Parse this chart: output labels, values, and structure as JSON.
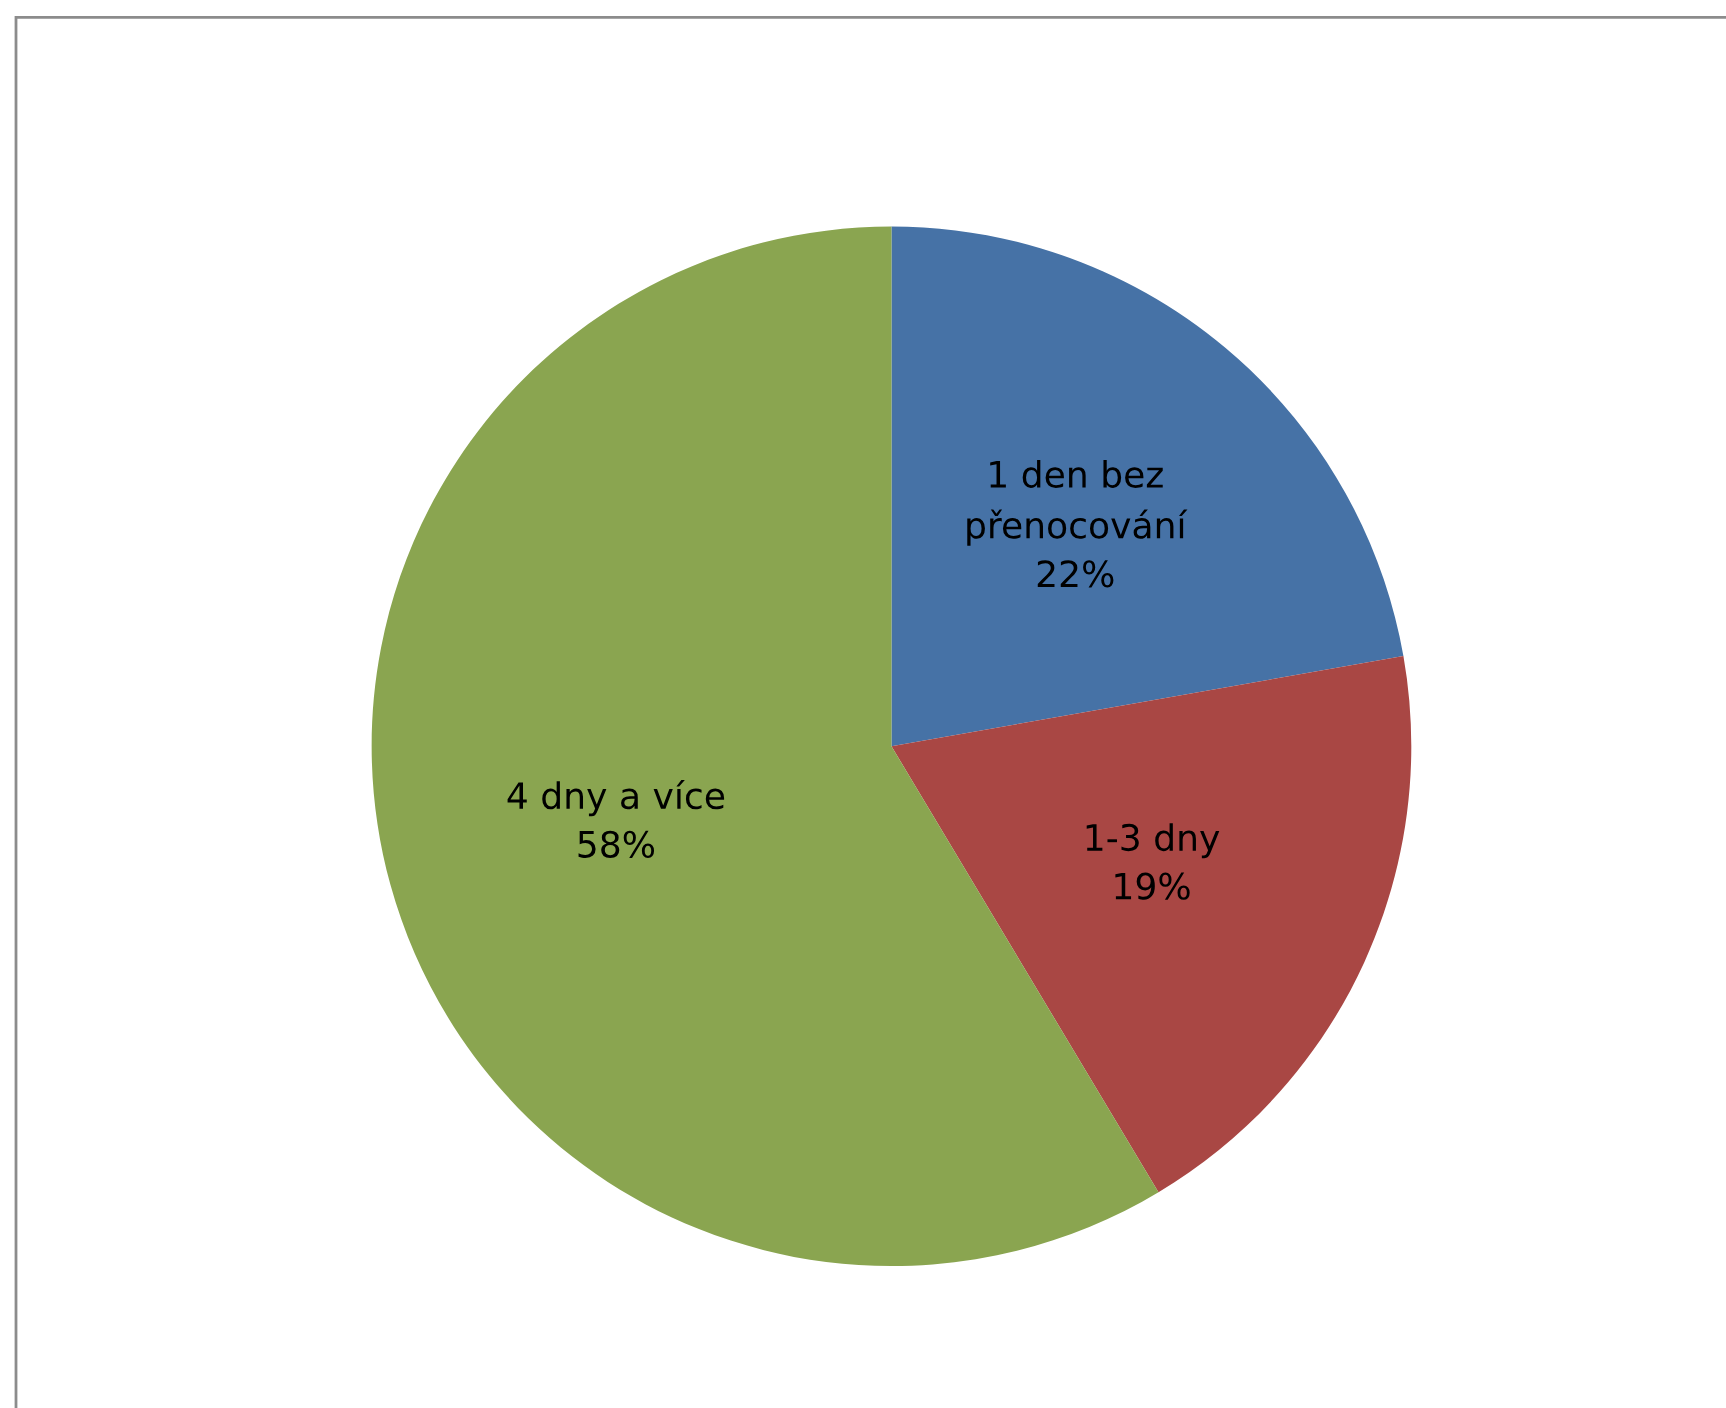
{
  "chart_data": {
    "type": "pie",
    "categories": [
      "1 den bez přenocování",
      "1-3 dny",
      "4 dny a více"
    ],
    "values": [
      22,
      19,
      58
    ],
    "value_labels": [
      "22%",
      "19%",
      "58%"
    ],
    "colors": [
      "#4672a6",
      "#a94744",
      "#8aa550"
    ],
    "legend": false
  }
}
